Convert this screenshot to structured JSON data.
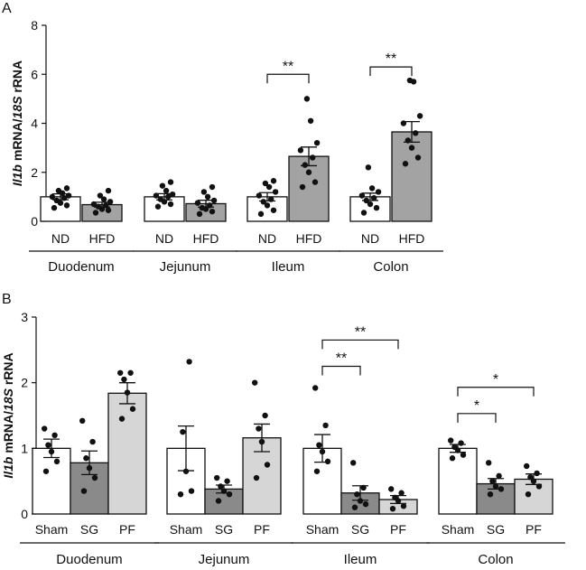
{
  "chart_data": [
    {
      "panel": "A",
      "type": "bar",
      "ylabel_gene": "Il1b",
      "ylabel_mid": " mRNA/",
      "ylabel_ref": "18S",
      "ylabel_tail": " rRNA",
      "ylim": [
        0,
        8
      ],
      "yticks": [
        "0",
        "2",
        "4",
        "6",
        "8"
      ],
      "ytick_values": [
        0,
        2,
        4,
        6,
        8
      ],
      "groups": [
        {
          "name": "Duodenum",
          "bars": [
            {
              "label": "ND",
              "mean": 1.0,
              "sem": 0.12,
              "color": "#ffffff",
              "points": [
                0.55,
                0.65,
                0.75,
                0.85,
                0.95,
                1.0,
                1.05,
                1.15,
                1.25,
                1.35
              ]
            },
            {
              "label": "HFD",
              "mean": 0.68,
              "sem": 0.1,
              "color": "#a3a3a3",
              "points": [
                0.35,
                0.45,
                0.5,
                0.6,
                0.65,
                0.7,
                0.8,
                0.9,
                1.05,
                1.25
              ]
            }
          ]
        },
        {
          "name": "Jejunum",
          "bars": [
            {
              "label": "ND",
              "mean": 1.0,
              "sem": 0.13,
              "color": "#ffffff",
              "points": [
                0.6,
                0.7,
                0.8,
                0.9,
                1.0,
                1.05,
                1.1,
                1.25,
                1.45,
                1.6
              ]
            },
            {
              "label": "HFD",
              "mean": 0.72,
              "sem": 0.14,
              "color": "#a3a3a3",
              "points": [
                0.3,
                0.4,
                0.5,
                0.55,
                0.65,
                0.75,
                0.85,
                1.0,
                1.2,
                1.4
              ]
            }
          ]
        },
        {
          "name": "Ileum",
          "bars": [
            {
              "label": "ND",
              "mean": 1.0,
              "sem": 0.17,
              "color": "#ffffff",
              "points": [
                0.3,
                0.45,
                0.65,
                0.8,
                0.9,
                1.05,
                1.2,
                1.4,
                1.55,
                1.65
              ]
            },
            {
              "label": "HFD",
              "mean": 2.65,
              "sem": 0.38,
              "color": "#a3a3a3",
              "points": [
                1.4,
                1.6,
                2.0,
                2.3,
                2.6,
                2.9,
                3.2,
                4.1,
                5.0
              ]
            }
          ]
        },
        {
          "name": "Colon",
          "bars": [
            {
              "label": "ND",
              "mean": 1.0,
              "sem": 0.15,
              "color": "#ffffff",
              "points": [
                0.35,
                0.55,
                0.7,
                0.85,
                0.95,
                1.05,
                1.2,
                1.35,
                2.2
              ]
            },
            {
              "label": "HFD",
              "mean": 3.65,
              "sem": 0.42,
              "color": "#a3a3a3",
              "points": [
                2.35,
                2.6,
                3.0,
                3.3,
                3.6,
                4.0,
                4.3,
                5.7,
                5.75
              ]
            }
          ]
        }
      ],
      "significance": [
        {
          "group": 2,
          "from": 0,
          "to": 1,
          "y": 6.0,
          "label": "**"
        },
        {
          "group": 3,
          "from": 0,
          "to": 1,
          "y": 6.3,
          "label": "**"
        }
      ]
    },
    {
      "panel": "B",
      "type": "bar",
      "ylabel_gene": "Il1b",
      "ylabel_mid": " mRNA/",
      "ylabel_ref": "18S",
      "ylabel_tail": " rRNA",
      "ylim": [
        0,
        3
      ],
      "yticks": [
        "0",
        "1",
        "2",
        "3"
      ],
      "ytick_values": [
        0,
        1,
        2,
        3
      ],
      "groups": [
        {
          "name": "Duodenum",
          "bars": [
            {
              "label": "Sham",
              "mean": 1.0,
              "sem": 0.14,
              "color": "#ffffff",
              "points": [
                0.65,
                0.8,
                0.95,
                1.05,
                1.2,
                1.3
              ]
            },
            {
              "label": "SG",
              "mean": 0.78,
              "sem": 0.18,
              "color": "#8a8a8a",
              "points": [
                0.35,
                0.55,
                0.7,
                0.85,
                1.1,
                1.42
              ]
            },
            {
              "label": "PF",
              "mean": 1.84,
              "sem": 0.16,
              "color": "#d6d6d6",
              "points": [
                1.45,
                1.6,
                1.85,
                2.05,
                2.15,
                2.15
              ]
            }
          ]
        },
        {
          "name": "Jejunum",
          "bars": [
            {
              "label": "Sham",
              "mean": 1.0,
              "sem": 0.34,
              "color": "#ffffff",
              "points": [
                0.3,
                0.35,
                0.65,
                1.25,
                2.32
              ]
            },
            {
              "label": "SG",
              "mean": 0.38,
              "sem": 0.06,
              "color": "#8a8a8a",
              "points": [
                0.2,
                0.3,
                0.35,
                0.42,
                0.5,
                0.55
              ]
            },
            {
              "label": "PF",
              "mean": 1.16,
              "sem": 0.21,
              "color": "#d6d6d6",
              "points": [
                0.55,
                0.75,
                1.1,
                1.3,
                1.5,
                2.0
              ]
            }
          ]
        },
        {
          "name": "Ileum",
          "bars": [
            {
              "label": "Sham",
              "mean": 1.0,
              "sem": 0.21,
              "color": "#ffffff",
              "points": [
                0.65,
                0.8,
                0.95,
                1.05,
                1.35,
                1.92
              ]
            },
            {
              "label": "SG",
              "mean": 0.32,
              "sem": 0.11,
              "color": "#8a8a8a",
              "points": [
                0.1,
                0.15,
                0.2,
                0.3,
                0.4,
                0.78
              ]
            },
            {
              "label": "PF",
              "mean": 0.22,
              "sem": 0.06,
              "color": "#d6d6d6",
              "points": [
                0.08,
                0.12,
                0.2,
                0.25,
                0.32,
                0.38
              ]
            }
          ]
        },
        {
          "name": "Colon",
          "bars": [
            {
              "label": "Sham",
              "mean": 1.0,
              "sem": 0.06,
              "color": "#ffffff",
              "points": [
                0.85,
                0.9,
                0.97,
                1.02,
                1.08,
                1.12
              ]
            },
            {
              "label": "SG",
              "mean": 0.46,
              "sem": 0.08,
              "color": "#8a8a8a",
              "points": [
                0.3,
                0.38,
                0.42,
                0.5,
                0.58,
                0.78
              ]
            },
            {
              "label": "PF",
              "mean": 0.53,
              "sem": 0.08,
              "color": "#d6d6d6",
              "points": [
                0.3,
                0.42,
                0.5,
                0.56,
                0.62,
                0.73
              ]
            }
          ]
        }
      ],
      "significance": [
        {
          "group": 2,
          "from": 0,
          "to": 1,
          "y": 2.25,
          "label": "**"
        },
        {
          "group": 2,
          "from": 0,
          "to": 2,
          "y": 2.65,
          "label": "**"
        },
        {
          "group": 3,
          "from": 0,
          "to": 1,
          "y": 1.53,
          "label": "*"
        },
        {
          "group": 3,
          "from": 0,
          "to": 2,
          "y": 1.93,
          "label": "*"
        }
      ]
    }
  ]
}
